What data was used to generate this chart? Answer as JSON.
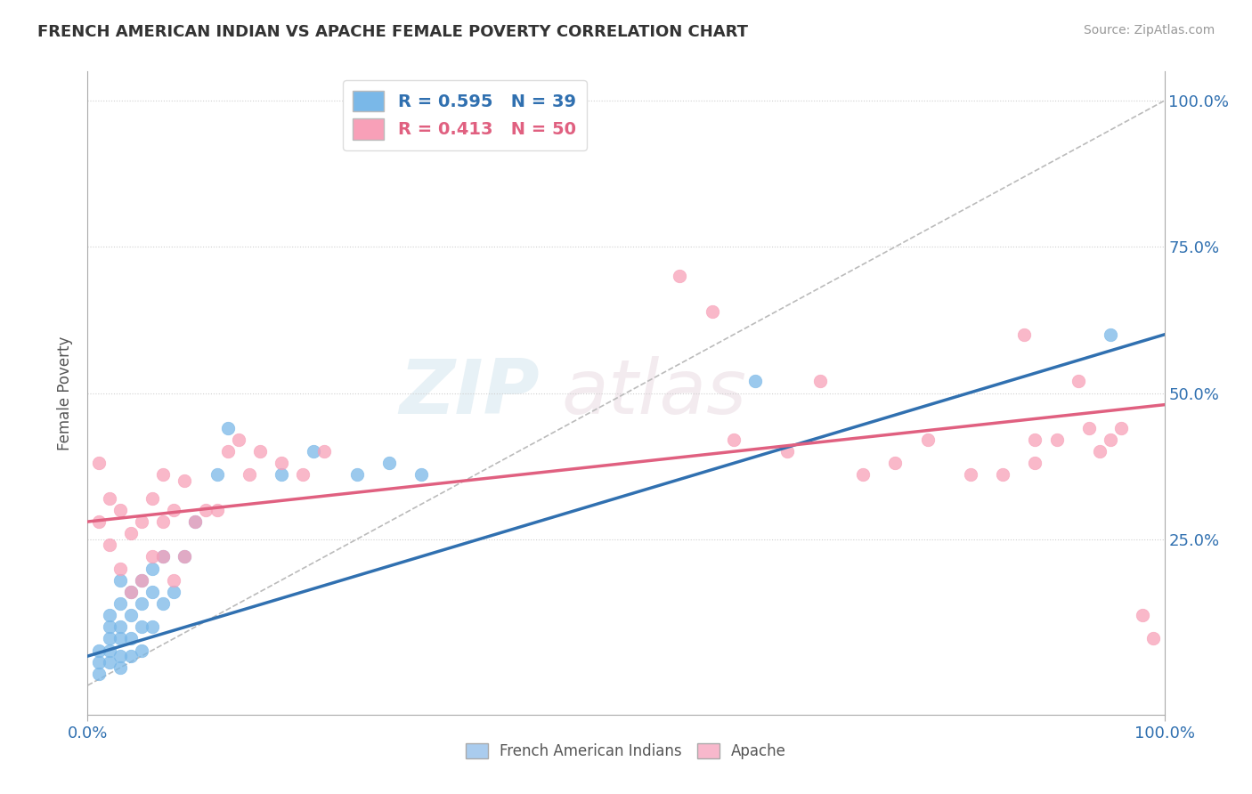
{
  "title": "FRENCH AMERICAN INDIAN VS APACHE FEMALE POVERTY CORRELATION CHART",
  "source": "Source: ZipAtlas.com",
  "ylabel": "Female Poverty",
  "xlim": [
    0,
    1
  ],
  "ylim": [
    -0.05,
    1.05
  ],
  "ytick_positions": [
    0.25,
    0.5,
    0.75,
    1.0
  ],
  "ytick_labels": [
    "25.0%",
    "50.0%",
    "75.0%",
    "100.0%"
  ],
  "legend_blue_r": "R = 0.595",
  "legend_blue_n": "N = 39",
  "legend_pink_r": "R = 0.413",
  "legend_pink_n": "N = 50",
  "blue_color": "#7ab8e8",
  "pink_color": "#f8a0b8",
  "blue_line_color": "#3070b0",
  "pink_line_color": "#e06080",
  "blue_scatter_x": [
    0.01,
    0.01,
    0.01,
    0.02,
    0.02,
    0.02,
    0.02,
    0.02,
    0.03,
    0.03,
    0.03,
    0.03,
    0.03,
    0.03,
    0.04,
    0.04,
    0.04,
    0.04,
    0.05,
    0.05,
    0.05,
    0.05,
    0.06,
    0.06,
    0.06,
    0.07,
    0.07,
    0.08,
    0.09,
    0.1,
    0.12,
    0.13,
    0.18,
    0.21,
    0.25,
    0.28,
    0.31,
    0.62,
    0.95
  ],
  "blue_scatter_y": [
    0.02,
    0.04,
    0.06,
    0.04,
    0.06,
    0.08,
    0.1,
    0.12,
    0.03,
    0.05,
    0.08,
    0.1,
    0.14,
    0.18,
    0.05,
    0.08,
    0.12,
    0.16,
    0.06,
    0.1,
    0.14,
    0.18,
    0.1,
    0.16,
    0.2,
    0.14,
    0.22,
    0.16,
    0.22,
    0.28,
    0.36,
    0.44,
    0.36,
    0.4,
    0.36,
    0.38,
    0.36,
    0.52,
    0.6
  ],
  "pink_scatter_x": [
    0.01,
    0.01,
    0.02,
    0.02,
    0.03,
    0.03,
    0.04,
    0.04,
    0.05,
    0.05,
    0.06,
    0.06,
    0.07,
    0.07,
    0.07,
    0.08,
    0.08,
    0.09,
    0.09,
    0.1,
    0.11,
    0.12,
    0.13,
    0.14,
    0.15,
    0.16,
    0.18,
    0.2,
    0.22,
    0.55,
    0.58,
    0.6,
    0.65,
    0.68,
    0.72,
    0.75,
    0.78,
    0.82,
    0.85,
    0.87,
    0.88,
    0.88,
    0.9,
    0.92,
    0.93,
    0.94,
    0.95,
    0.96,
    0.98,
    0.99
  ],
  "pink_scatter_y": [
    0.28,
    0.38,
    0.24,
    0.32,
    0.2,
    0.3,
    0.16,
    0.26,
    0.18,
    0.28,
    0.22,
    0.32,
    0.22,
    0.28,
    0.36,
    0.18,
    0.3,
    0.22,
    0.35,
    0.28,
    0.3,
    0.3,
    0.4,
    0.42,
    0.36,
    0.4,
    0.38,
    0.36,
    0.4,
    0.7,
    0.64,
    0.42,
    0.4,
    0.52,
    0.36,
    0.38,
    0.42,
    0.36,
    0.36,
    0.6,
    0.38,
    0.42,
    0.42,
    0.52,
    0.44,
    0.4,
    0.42,
    0.44,
    0.12,
    0.08
  ],
  "grid_color": "#d0d0d0",
  "bg_color": "#ffffff",
  "blue_trend": [
    0.05,
    0.6
  ],
  "pink_trend": [
    0.28,
    0.48
  ]
}
